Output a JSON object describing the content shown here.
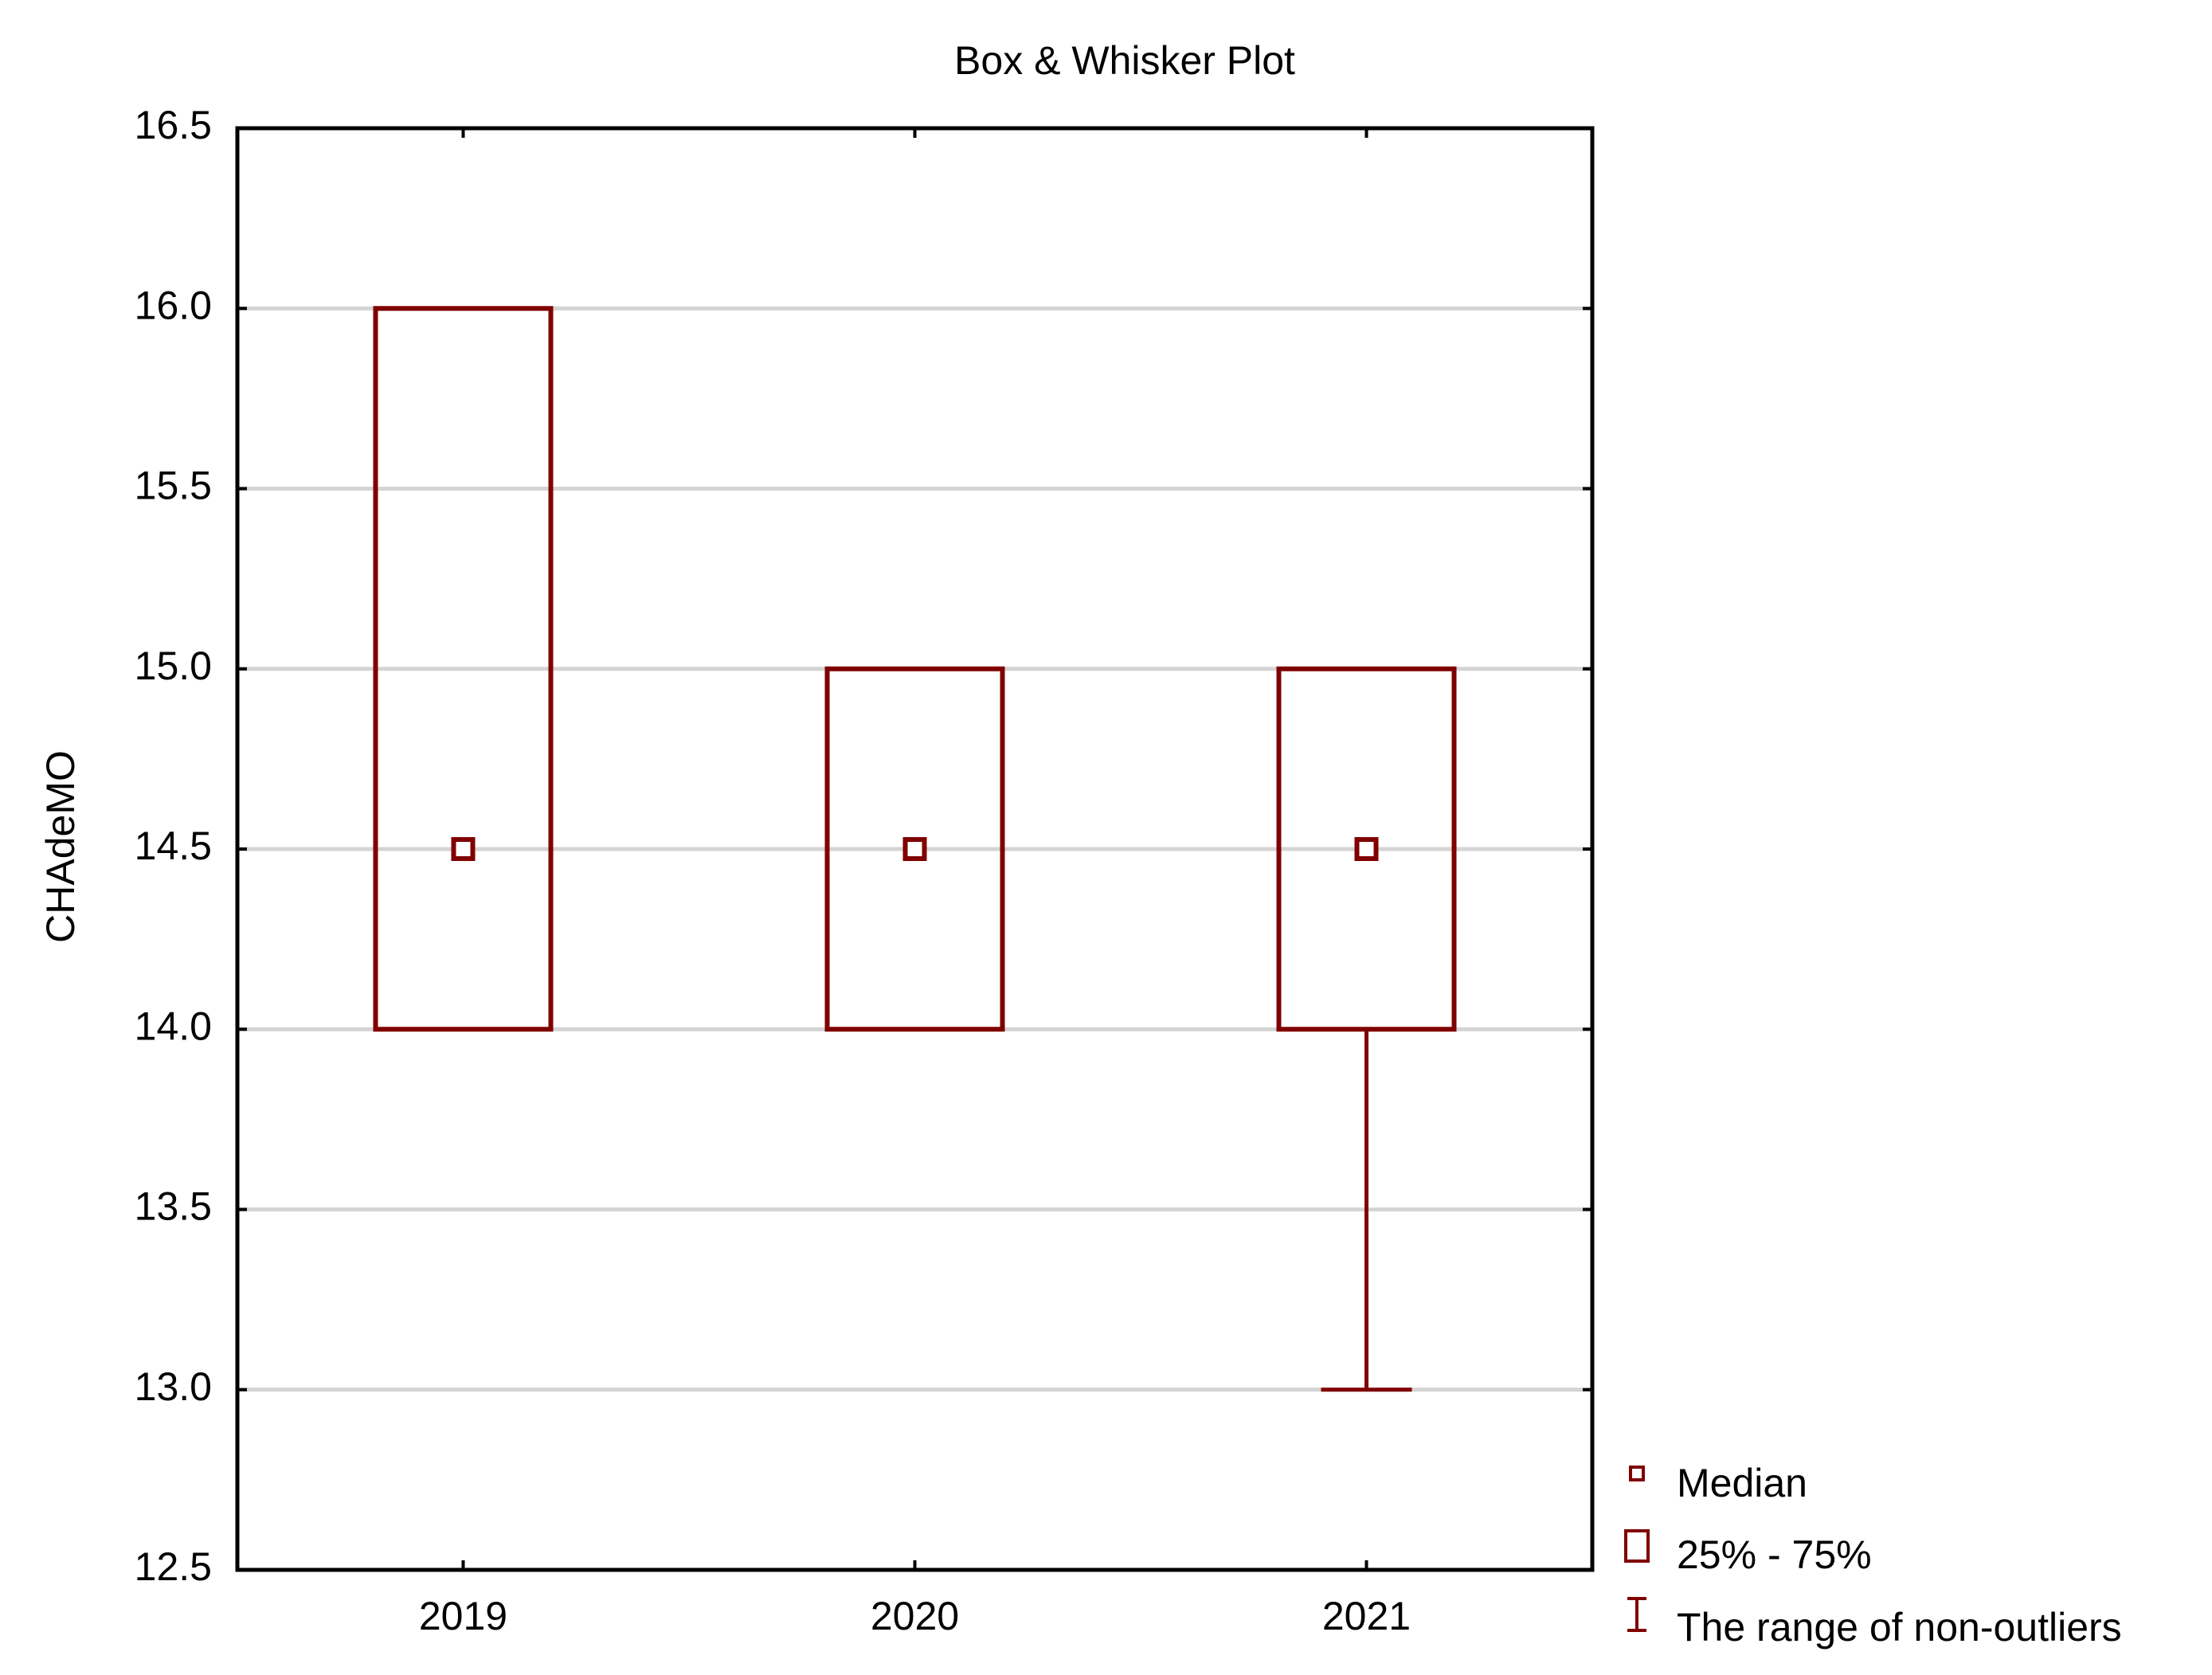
{
  "chart_data": {
    "type": "box",
    "title": "Box & Whisker Plot",
    "y_label": "CHAdeMO",
    "categories": [
      "2019",
      "2020",
      "2021"
    ],
    "boxes": [
      {
        "min": 14,
        "q1": 14,
        "median": 14.5,
        "q3": 16,
        "max": 16
      },
      {
        "min": 14,
        "q1": 14,
        "median": 14.5,
        "q3": 15,
        "max": 15
      },
      {
        "min": 13,
        "q1": 14,
        "median": 14.5,
        "q3": 15,
        "max": 15
      }
    ],
    "color": "#800000",
    "ylim": [
      12.5,
      16.5
    ],
    "yticks": [
      12.5,
      {
        "value": 13,
        "label": "13.0"
      },
      13.5,
      {
        "value": 14,
        "label": "14.0"
      },
      14.5,
      {
        "value": 15,
        "label": "15.0"
      },
      15.5,
      {
        "value": 16,
        "label": "16.0"
      },
      16.5
    ],
    "grid": true,
    "legend": "right",
    "legend_labels": [
      "Median",
      "25% - 75%",
      "The range of  non-outliers"
    ]
  }
}
